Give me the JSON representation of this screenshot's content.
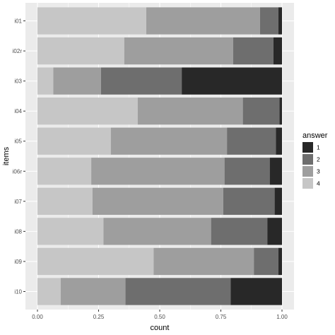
{
  "chart_data": {
    "type": "bar",
    "orientation": "horizontal",
    "stacked": "proportional",
    "title": "",
    "xlabel": "count",
    "ylabel": "items",
    "xlim": [
      0,
      1
    ],
    "x_ticks": [
      "0.00",
      "0.25",
      "0.50",
      "0.75",
      "1.00"
    ],
    "x_tick_values": [
      0,
      0.25,
      0.5,
      0.75,
      1.0
    ],
    "categories": [
      "i01",
      "i02r",
      "i03",
      "i04",
      "i05",
      "i06r",
      "i07",
      "i08",
      "i09",
      "i10"
    ],
    "series": [
      {
        "name": "4",
        "color": "#c6c6c6",
        "values": [
          0.445,
          0.355,
          0.065,
          0.41,
          0.3,
          0.22,
          0.225,
          0.27,
          0.475,
          0.095
        ]
      },
      {
        "name": "3",
        "color": "#9e9e9e",
        "values": [
          0.465,
          0.445,
          0.195,
          0.43,
          0.475,
          0.545,
          0.535,
          0.44,
          0.41,
          0.265
        ]
      },
      {
        "name": "2",
        "color": "#6e6e6e",
        "values": [
          0.075,
          0.165,
          0.33,
          0.15,
          0.2,
          0.185,
          0.21,
          0.23,
          0.1,
          0.43
        ]
      },
      {
        "name": "1",
        "color": "#282828",
        "values": [
          0.015,
          0.035,
          0.41,
          0.01,
          0.025,
          0.05,
          0.03,
          0.06,
          0.015,
          0.21
        ]
      }
    ],
    "legend": {
      "title": "answer",
      "position": "right",
      "items": [
        {
          "label": "1",
          "color": "#282828"
        },
        {
          "label": "2",
          "color": "#6e6e6e"
        },
        {
          "label": "3",
          "color": "#9e9e9e"
        },
        {
          "label": "4",
          "color": "#c6c6c6"
        }
      ]
    },
    "grid": true,
    "panel_background": "#ebebeb",
    "grid_color": "#ffffff"
  }
}
